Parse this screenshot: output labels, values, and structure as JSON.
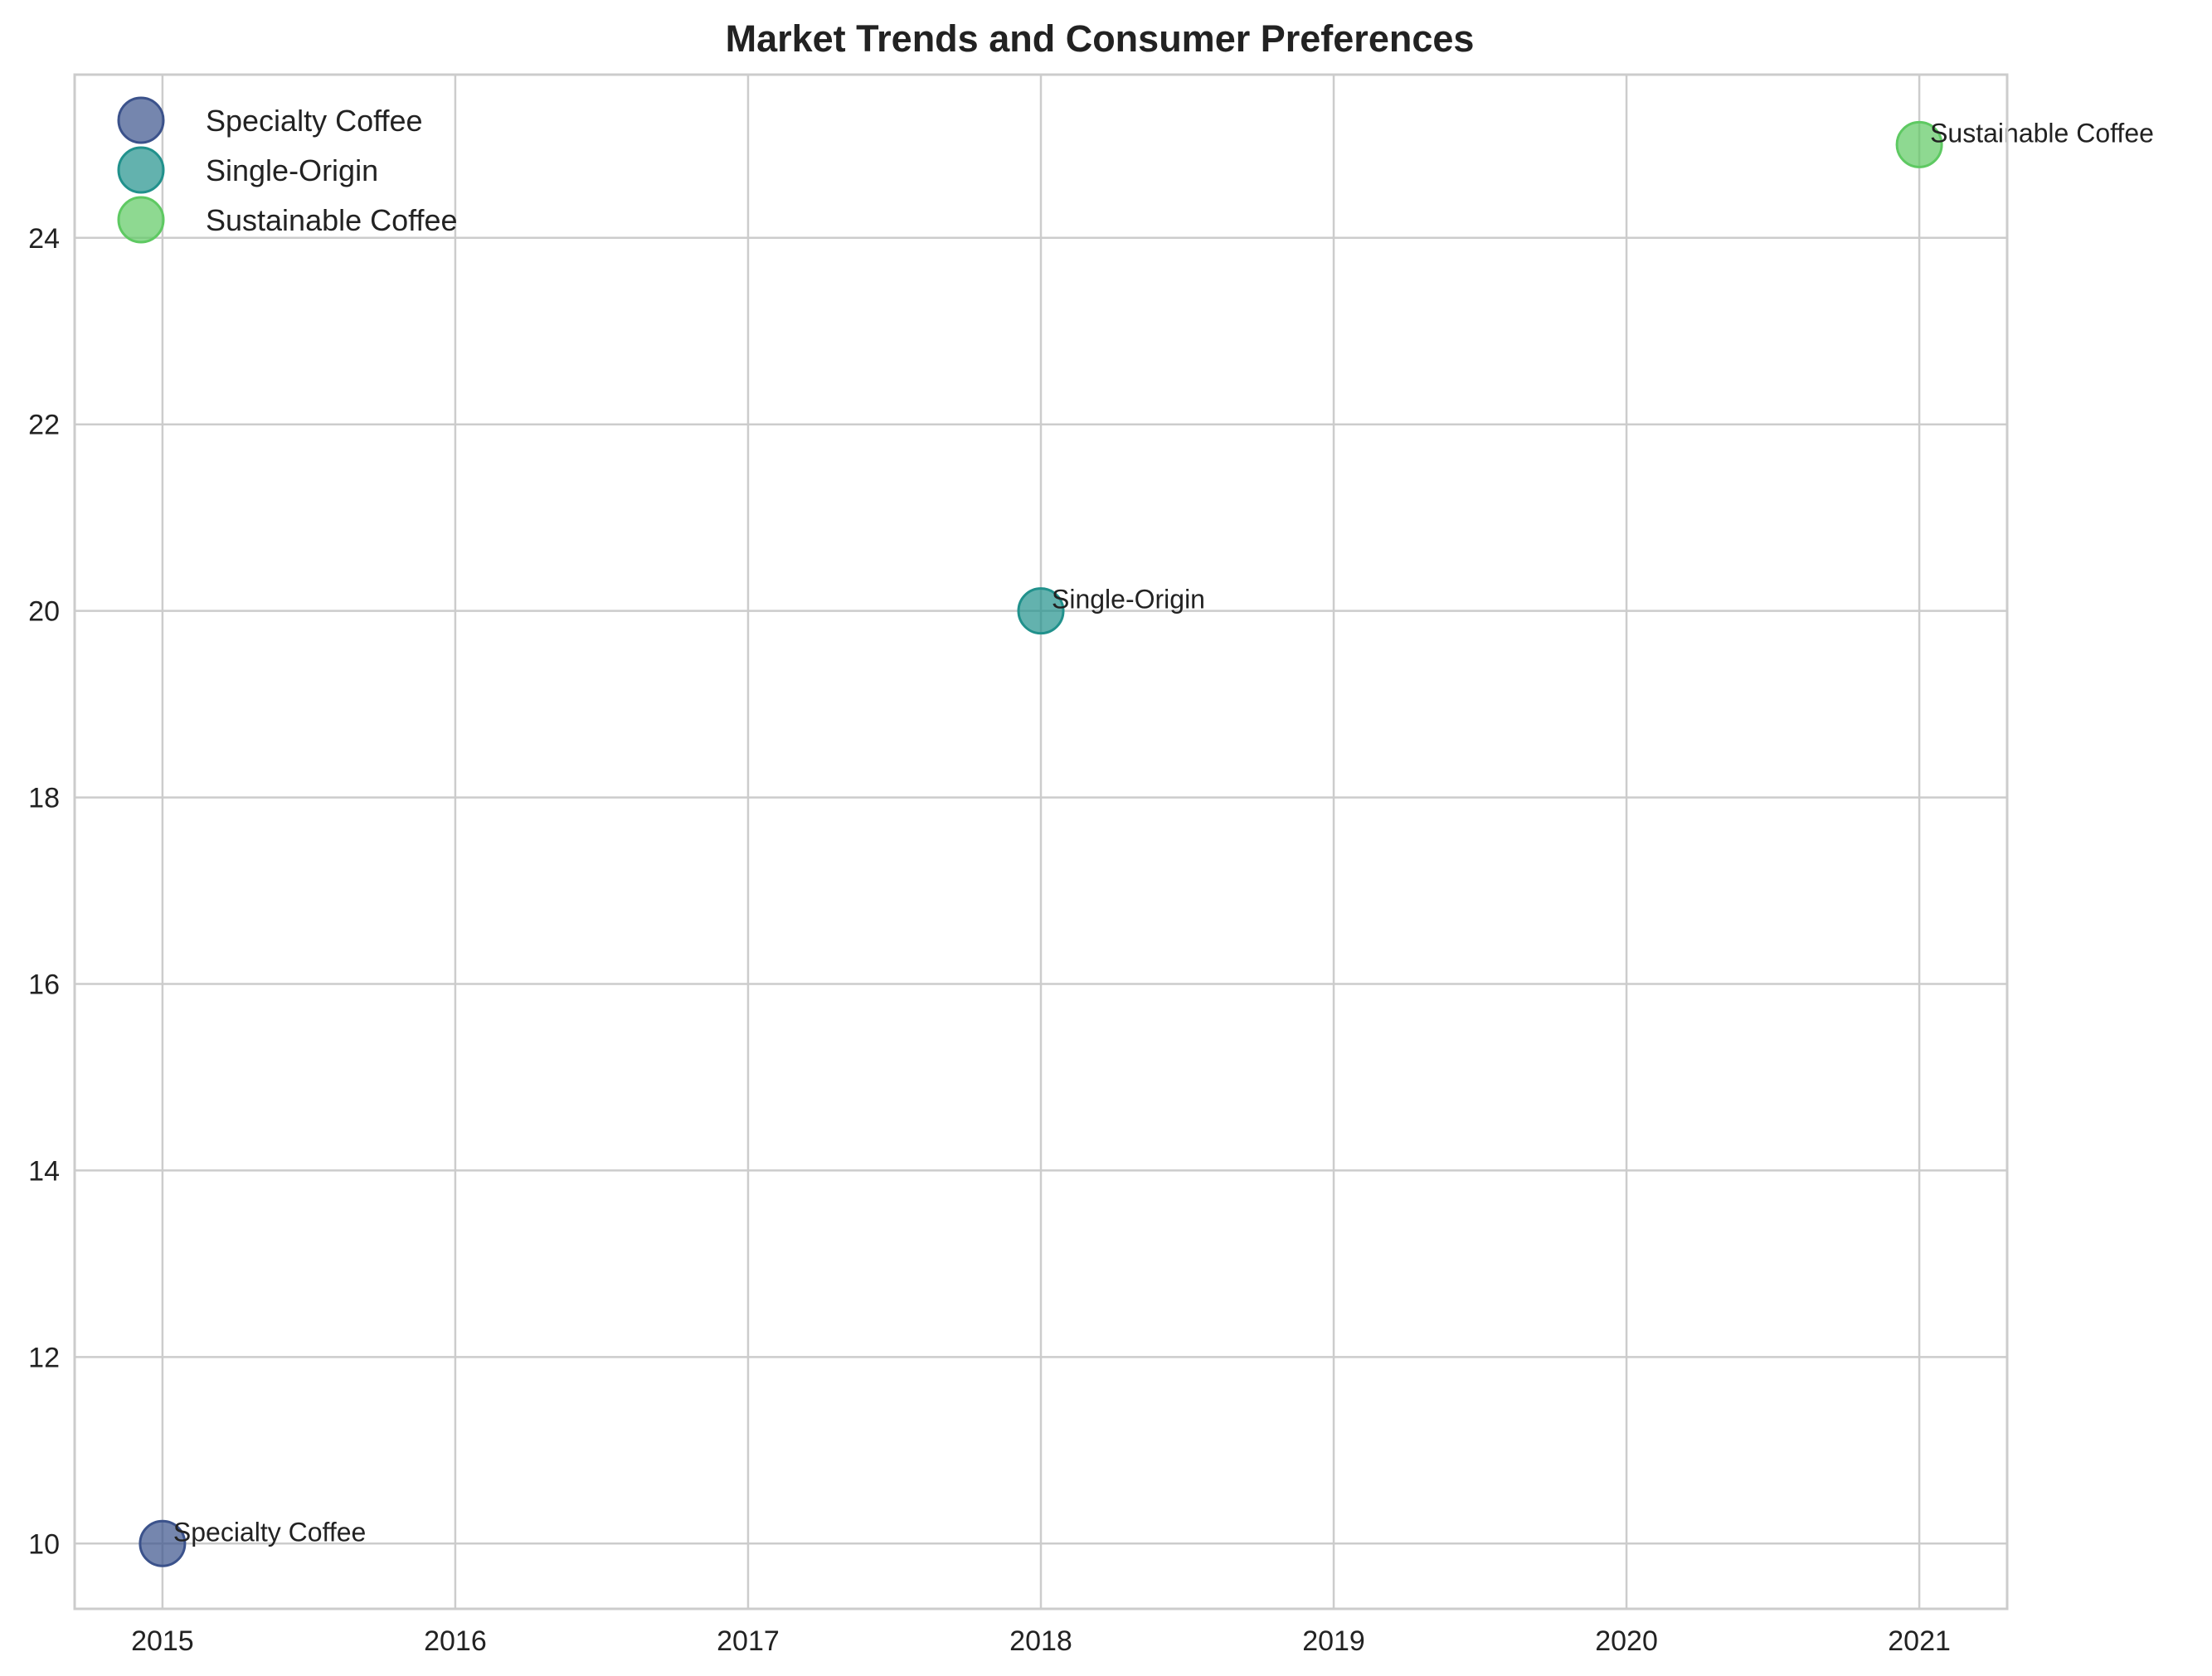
{
  "chart_data": {
    "type": "scatter",
    "title": "Market Trends and Consumer Preferences",
    "xlabel": "",
    "ylabel": "",
    "xlim": [
      2014.7,
      2021.3
    ],
    "ylim": [
      9.3,
      25.75
    ],
    "x_ticks": [
      "2015",
      "2016",
      "2017",
      "2018",
      "2019",
      "2020",
      "2021"
    ],
    "y_ticks": [
      "10",
      "12",
      "14",
      "16",
      "18",
      "20",
      "22",
      "24"
    ],
    "grid": true,
    "legend_position": "top-left",
    "series": [
      {
        "name": "Specialty Coffee",
        "color": "#3b528b",
        "points": [
          {
            "x": 2015,
            "y": 10,
            "label": "Specialty Coffee"
          }
        ]
      },
      {
        "name": "Single-Origin",
        "color": "#21918c",
        "points": [
          {
            "x": 2018,
            "y": 20,
            "label": "Single-Origin"
          }
        ]
      },
      {
        "name": "Sustainable Coffee",
        "color": "#5ec962",
        "points": [
          {
            "x": 2021,
            "y": 25,
            "label": "Sustainable Coffee"
          }
        ]
      }
    ]
  }
}
